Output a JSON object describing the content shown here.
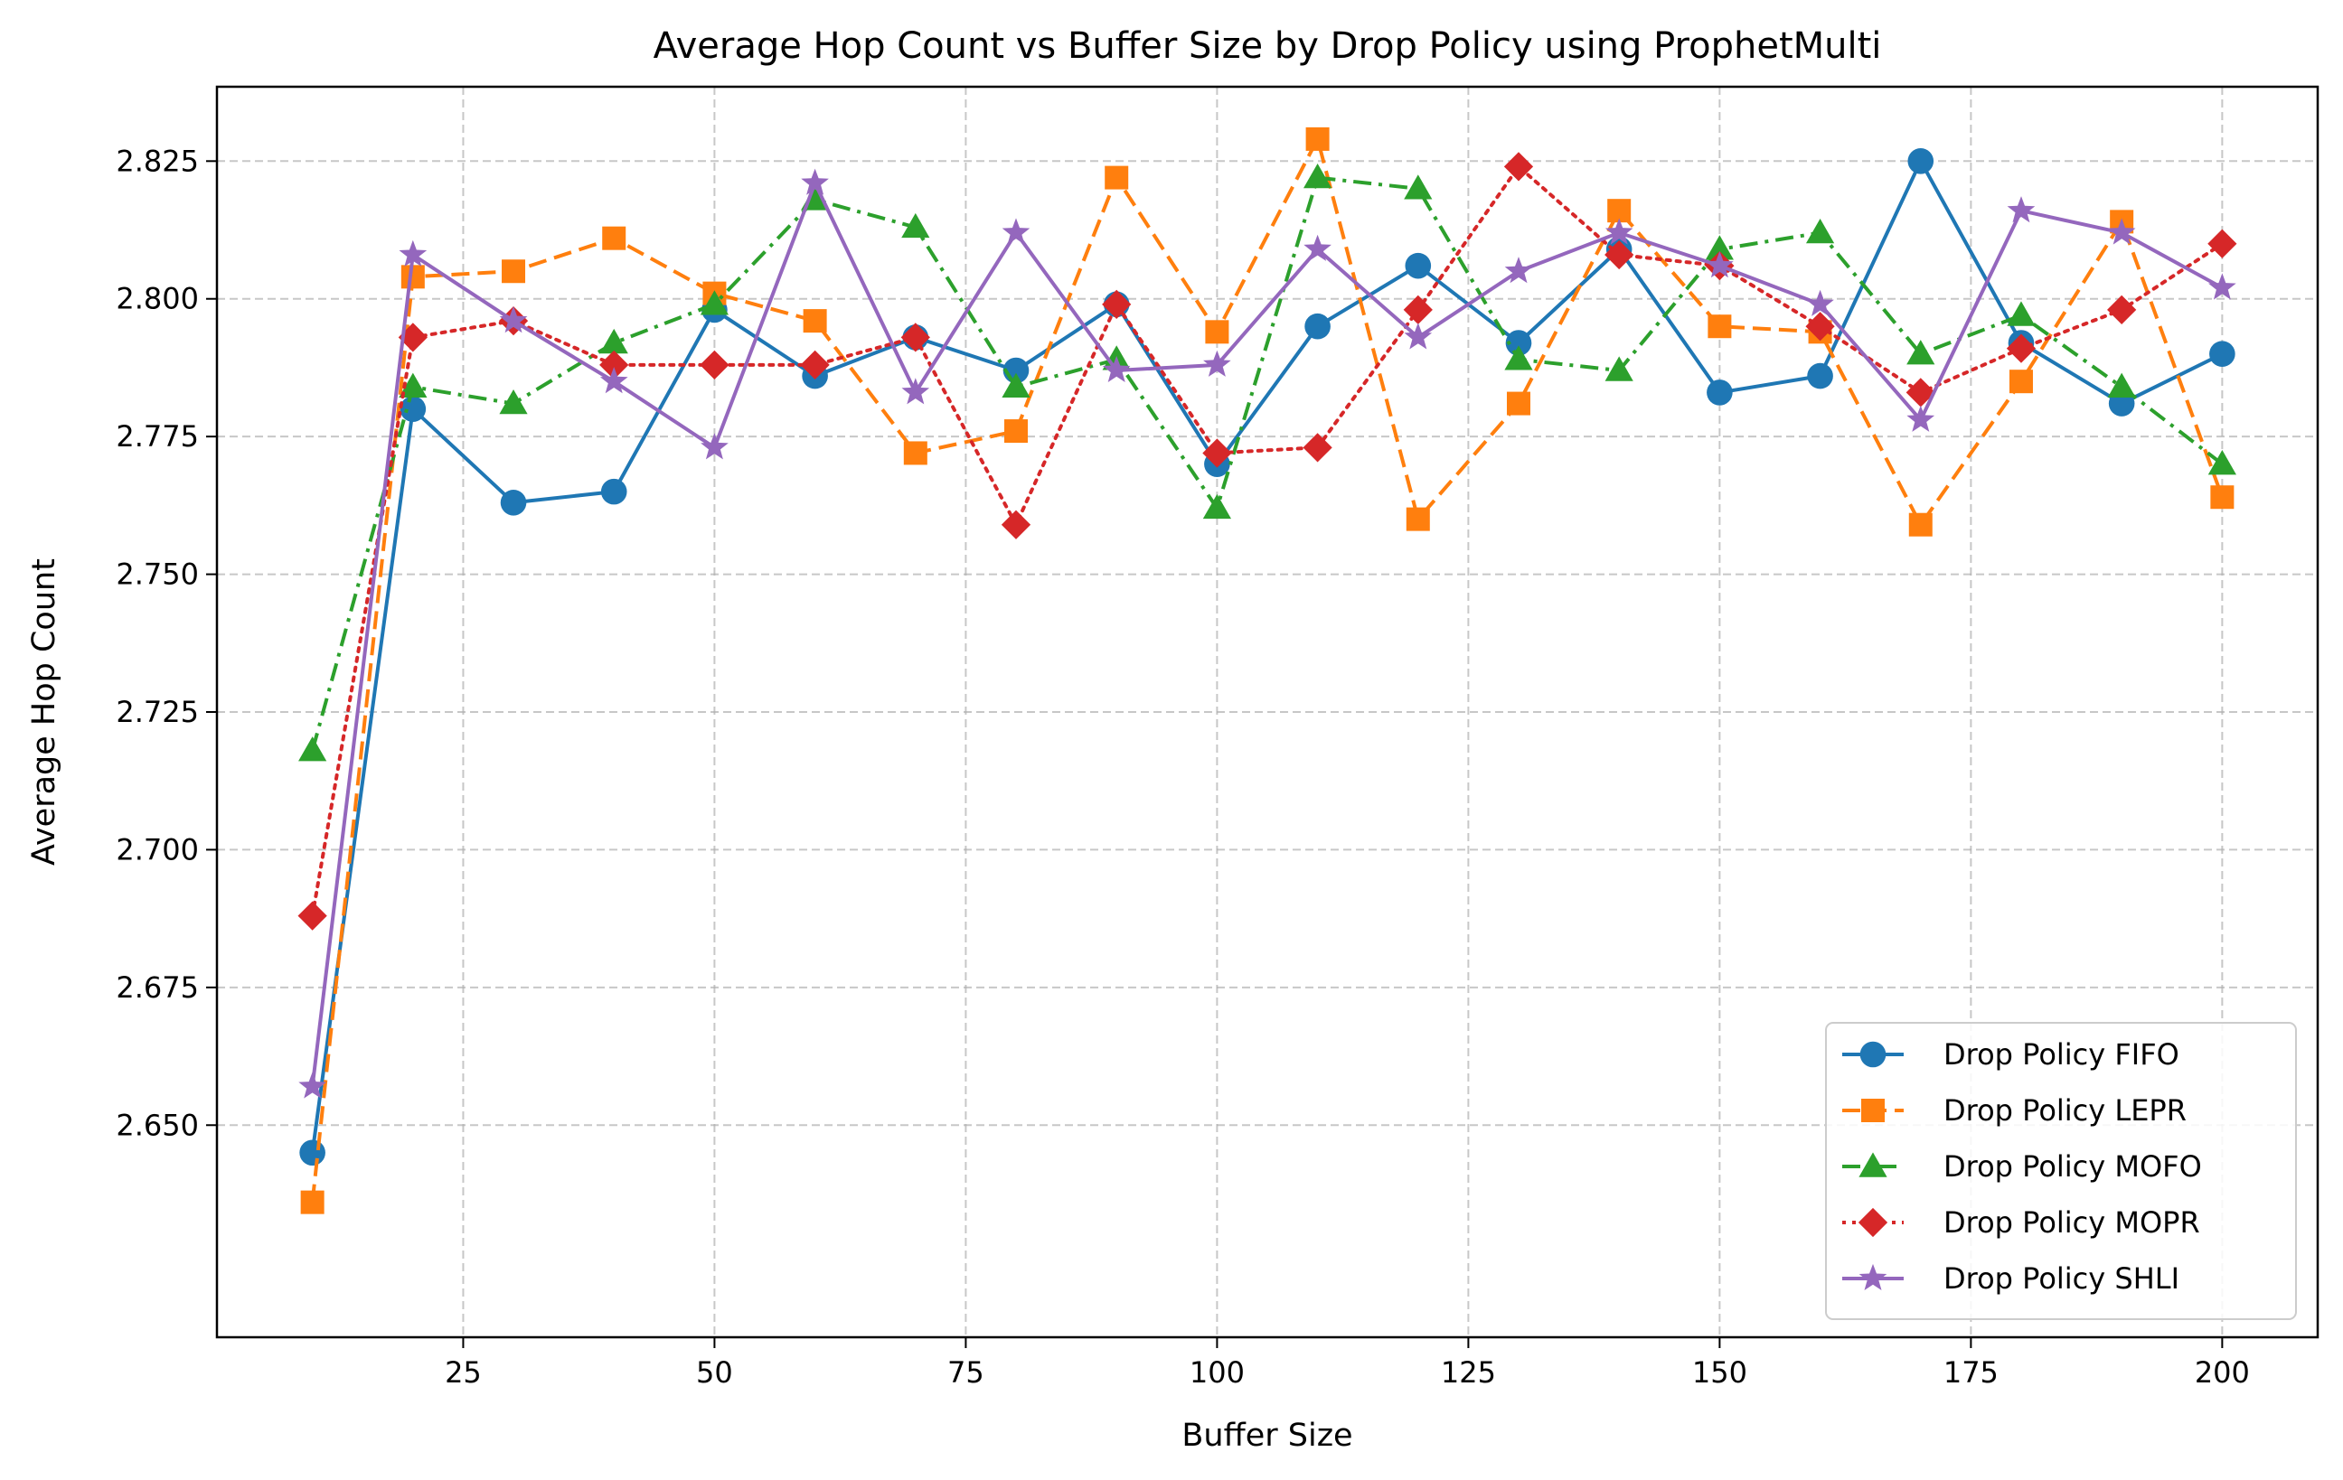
{
  "chart_data": {
    "type": "line",
    "title": "Average Hop Count vs Buffer Size by Drop Policy using ProphetMulti",
    "xlabel": "Buffer Size",
    "ylabel": "Average Hop Count",
    "xlim": [
      0.5,
      209.5
    ],
    "ylim": [
      2.6115,
      2.8385
    ],
    "xticks": [
      25,
      50,
      75,
      100,
      125,
      150,
      175,
      200
    ],
    "yticks": [
      2.65,
      2.675,
      2.7,
      2.725,
      2.75,
      2.775,
      2.8,
      2.825
    ],
    "ytick_labels": [
      "2.650",
      "2.675",
      "2.700",
      "2.725",
      "2.750",
      "2.775",
      "2.800",
      "2.825"
    ],
    "grid": true,
    "legend_position": "lower-right",
    "x": [
      10,
      20,
      30,
      40,
      50,
      60,
      70,
      80,
      90,
      100,
      110,
      120,
      130,
      140,
      150,
      160,
      170,
      180,
      190,
      200
    ],
    "series": [
      {
        "name": "Drop Policy FIFO",
        "color": "#1f77b4",
        "dash": "solid",
        "marker": "circle",
        "values": [
          2.645,
          2.78,
          2.763,
          2.765,
          2.798,
          2.786,
          2.793,
          2.787,
          2.799,
          2.77,
          2.795,
          2.806,
          2.792,
          2.809,
          2.783,
          2.786,
          2.825,
          2.792,
          2.781,
          2.79
        ]
      },
      {
        "name": "Drop Policy LEPR",
        "color": "#ff7f0e",
        "dash": "dashed",
        "marker": "square",
        "values": [
          2.636,
          2.804,
          2.805,
          2.811,
          2.801,
          2.796,
          2.772,
          2.776,
          2.822,
          2.794,
          2.829,
          2.76,
          2.781,
          2.816,
          2.795,
          2.794,
          2.759,
          2.785,
          2.814,
          2.764
        ]
      },
      {
        "name": "Drop Policy MOFO",
        "color": "#2ca02c",
        "dash": "dashdot",
        "marker": "triangle",
        "values": [
          2.718,
          2.784,
          2.781,
          2.792,
          2.799,
          2.818,
          2.813,
          2.784,
          2.789,
          2.762,
          2.822,
          2.82,
          2.789,
          2.787,
          2.809,
          2.812,
          2.79,
          2.797,
          2.784,
          2.77
        ]
      },
      {
        "name": "Drop Policy MOPR",
        "color": "#d62728",
        "dash": "dotted",
        "marker": "diamond",
        "values": [
          2.688,
          2.793,
          2.796,
          2.788,
          2.788,
          2.788,
          2.793,
          2.759,
          2.799,
          2.772,
          2.773,
          2.798,
          2.824,
          2.808,
          2.806,
          2.795,
          2.783,
          2.791,
          2.798,
          2.81
        ]
      },
      {
        "name": "Drop Policy SHLI",
        "color": "#9467bd",
        "dash": "solid",
        "marker": "star",
        "values": [
          2.657,
          2.808,
          2.796,
          2.785,
          2.773,
          2.821,
          2.783,
          2.812,
          2.787,
          2.788,
          2.809,
          2.793,
          2.805,
          2.812,
          2.806,
          2.799,
          2.778,
          2.816,
          2.812,
          2.802
        ]
      }
    ]
  }
}
